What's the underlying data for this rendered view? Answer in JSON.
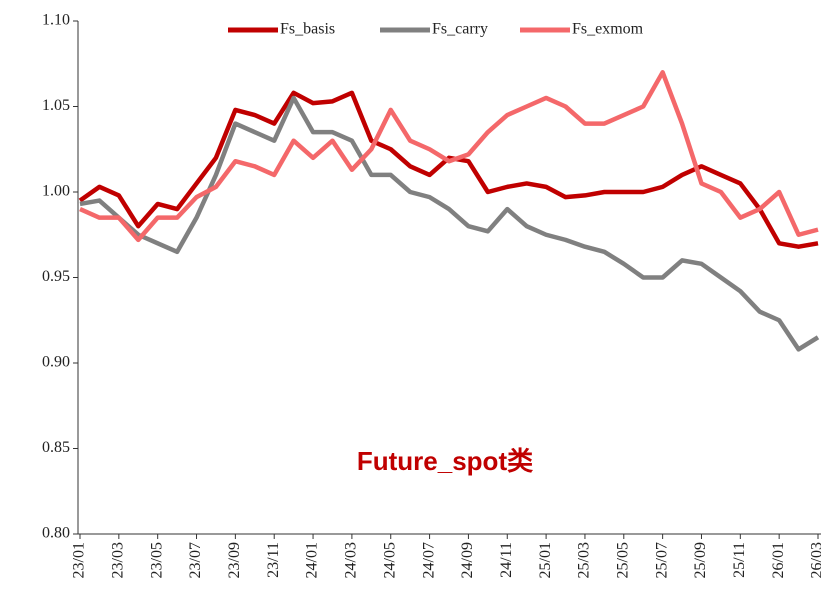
{
  "chart_data": {
    "type": "line",
    "annotation": "Future_spot类",
    "categories": [
      "23/01",
      null,
      "23/03",
      null,
      "23/05",
      null,
      "23/07",
      null,
      "23/09",
      null,
      "23/11",
      null,
      "24/01",
      null,
      "24/03",
      null,
      "24/05",
      null,
      "24/07",
      null,
      "24/09",
      null,
      "24/11",
      null,
      "25/01",
      null,
      "25/03",
      null,
      "25/05",
      null,
      "25/07",
      null,
      "25/09",
      null,
      "25/11",
      null,
      "26/01",
      null,
      "26/03"
    ],
    "series": [
      {
        "name": "Fs_basis",
        "color": "#c00000",
        "values": [
          0.995,
          1.003,
          0.998,
          0.98,
          0.993,
          0.99,
          1.005,
          1.02,
          1.048,
          1.045,
          1.04,
          1.058,
          1.052,
          1.053,
          1.058,
          1.03,
          1.025,
          1.015,
          1.01,
          1.02,
          1.018,
          1.0,
          1.003,
          1.005,
          1.003,
          0.997,
          0.998,
          1.0,
          1.0,
          1.0,
          1.003,
          1.01,
          1.015,
          1.01,
          1.005,
          0.99,
          0.97,
          0.968,
          0.97
        ]
      },
      {
        "name": "Fs_carry",
        "color": "#808080",
        "values": [
          0.993,
          0.995,
          0.985,
          0.975,
          0.97,
          0.965,
          0.985,
          1.01,
          1.04,
          1.035,
          1.03,
          1.055,
          1.035,
          1.035,
          1.03,
          1.01,
          1.01,
          1.0,
          0.997,
          0.99,
          0.98,
          0.977,
          0.99,
          0.98,
          0.975,
          0.972,
          0.968,
          0.965,
          0.958,
          0.95,
          0.95,
          0.96,
          0.958,
          0.95,
          0.942,
          0.93,
          0.925,
          0.908,
          0.915
        ]
      },
      {
        "name": "Fs_exmom",
        "color": "#f4686a",
        "values": [
          0.99,
          0.985,
          0.985,
          0.972,
          0.985,
          0.985,
          0.997,
          1.003,
          1.018,
          1.015,
          1.01,
          1.03,
          1.02,
          1.03,
          1.013,
          1.025,
          1.048,
          1.03,
          1.025,
          1.018,
          1.022,
          1.035,
          1.045,
          1.05,
          1.055,
          1.05,
          1.04,
          1.04,
          1.045,
          1.05,
          1.07,
          1.04,
          1.005,
          1.0,
          0.985,
          0.99,
          1.0,
          0.975,
          0.978
        ]
      }
    ],
    "ylim": [
      0.8,
      1.1
    ],
    "yticks": [
      {
        "value": 0.8,
        "label": "0.80"
      },
      0.85,
      {
        "value": 0.9,
        "label": "0.90"
      },
      0.95,
      {
        "value": 1.0,
        "label": "1.00"
      },
      1.05,
      {
        "value": 1.1,
        "label": "1.10"
      }
    ],
    "legend": "upper center",
    "grid": false
  }
}
